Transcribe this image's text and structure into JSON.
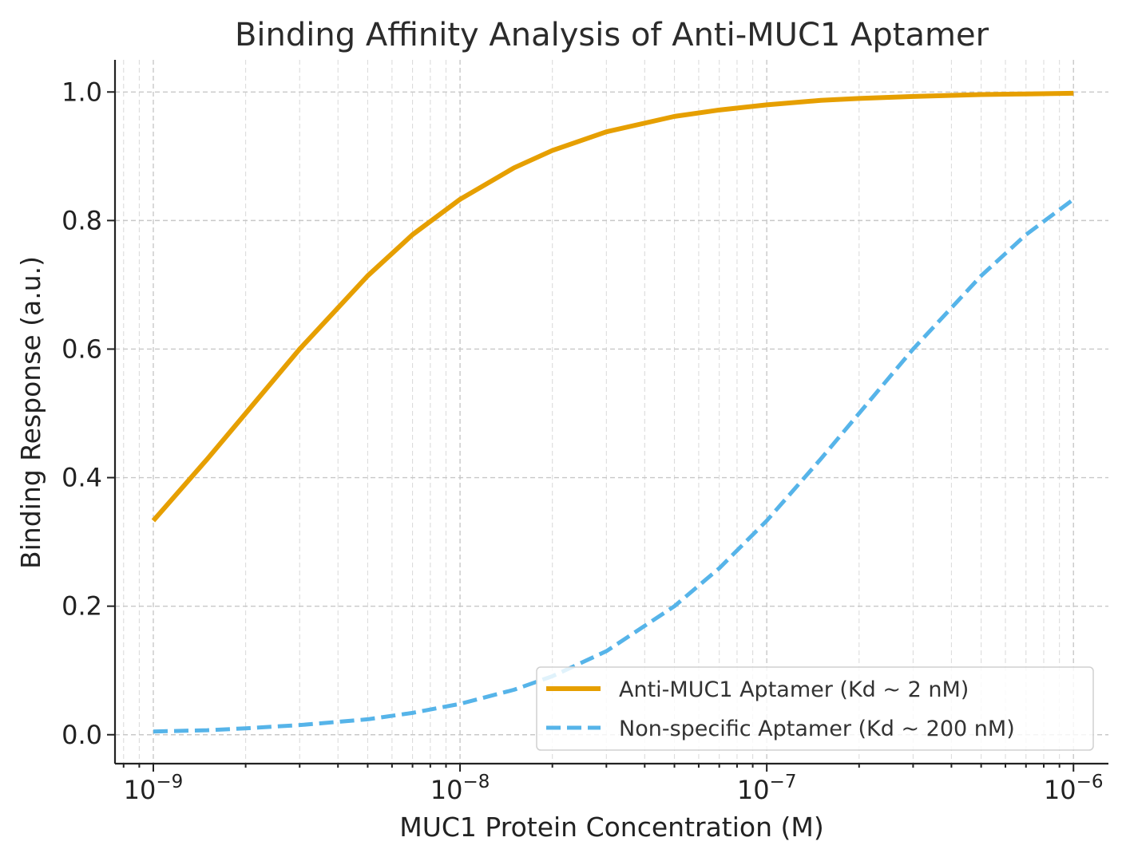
{
  "chart_data": {
    "type": "line",
    "title": "Binding Affinity Analysis of Anti-MUC1 Aptamer",
    "xlabel": "MUC1 Protein Concentration (M)",
    "ylabel": "Binding Response (a.u.)",
    "x_scale": "log",
    "xlim": [
      7.5e-10,
      1.3e-06
    ],
    "ylim": [
      -0.045,
      1.05
    ],
    "x_ticks": [
      {
        "value": 1e-09,
        "base": "10",
        "exp": "−9"
      },
      {
        "value": 1e-08,
        "base": "10",
        "exp": "−8"
      },
      {
        "value": 1e-07,
        "base": "10",
        "exp": "−7"
      },
      {
        "value": 1e-06,
        "base": "10",
        "exp": "−6"
      }
    ],
    "y_ticks": [
      {
        "value": 0.0,
        "label": "0.0"
      },
      {
        "value": 0.2,
        "label": "0.2"
      },
      {
        "value": 0.4,
        "label": "0.4"
      },
      {
        "value": 0.6,
        "label": "0.6"
      },
      {
        "value": 0.8,
        "label": "0.8"
      },
      {
        "value": 1.0,
        "label": "1.0"
      }
    ],
    "grid": true,
    "legend_position": "lower-right",
    "x": [
      1e-09,
      1.5e-09,
      2e-09,
      3e-09,
      5e-09,
      7e-09,
      1e-08,
      1.5e-08,
      2e-08,
      3e-08,
      5e-08,
      7e-08,
      1e-07,
      1.5e-07,
      2e-07,
      3e-07,
      5e-07,
      7e-07,
      1e-06
    ],
    "series": [
      {
        "name": "Anti-MUC1 Aptamer (Kd ~ 2 nM)",
        "color": "#E69F00",
        "style": "solid",
        "values": [
          0.333,
          0.429,
          0.5,
          0.6,
          0.714,
          0.778,
          0.833,
          0.882,
          0.909,
          0.938,
          0.962,
          0.972,
          0.98,
          0.987,
          0.99,
          0.993,
          0.996,
          0.997,
          0.998
        ]
      },
      {
        "name": "Non-specific Aptamer (Kd ~ 200 nM)",
        "color": "#56B4E9",
        "style": "dashed",
        "values": [
          0.005,
          0.007,
          0.01,
          0.015,
          0.024,
          0.034,
          0.048,
          0.07,
          0.091,
          0.13,
          0.2,
          0.259,
          0.333,
          0.429,
          0.5,
          0.6,
          0.714,
          0.778,
          0.833
        ]
      }
    ]
  }
}
